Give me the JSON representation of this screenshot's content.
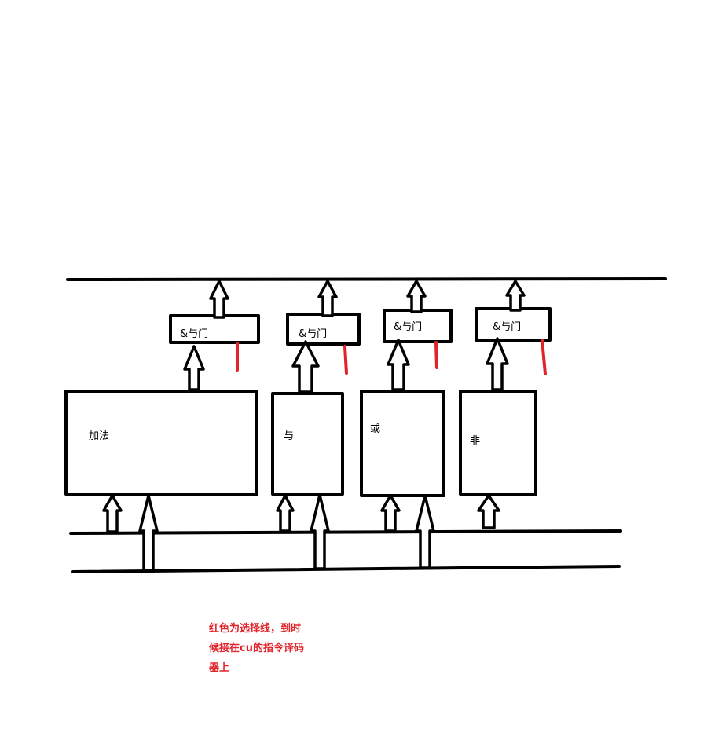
{
  "colors": {
    "ink": "#000000",
    "select_line": "#e0242a",
    "background": "#ffffff"
  },
  "gates": [
    {
      "label": "&与门"
    },
    {
      "label": "&与门"
    },
    {
      "label": "&与门"
    },
    {
      "label": "&与门"
    }
  ],
  "units": [
    {
      "label": "加法"
    },
    {
      "label": "与"
    },
    {
      "label": "或"
    },
    {
      "label": "非"
    }
  ],
  "note": {
    "lines": [
      "红色为选择线，到时",
      "候接在cu的指令译码",
      "器上"
    ]
  }
}
